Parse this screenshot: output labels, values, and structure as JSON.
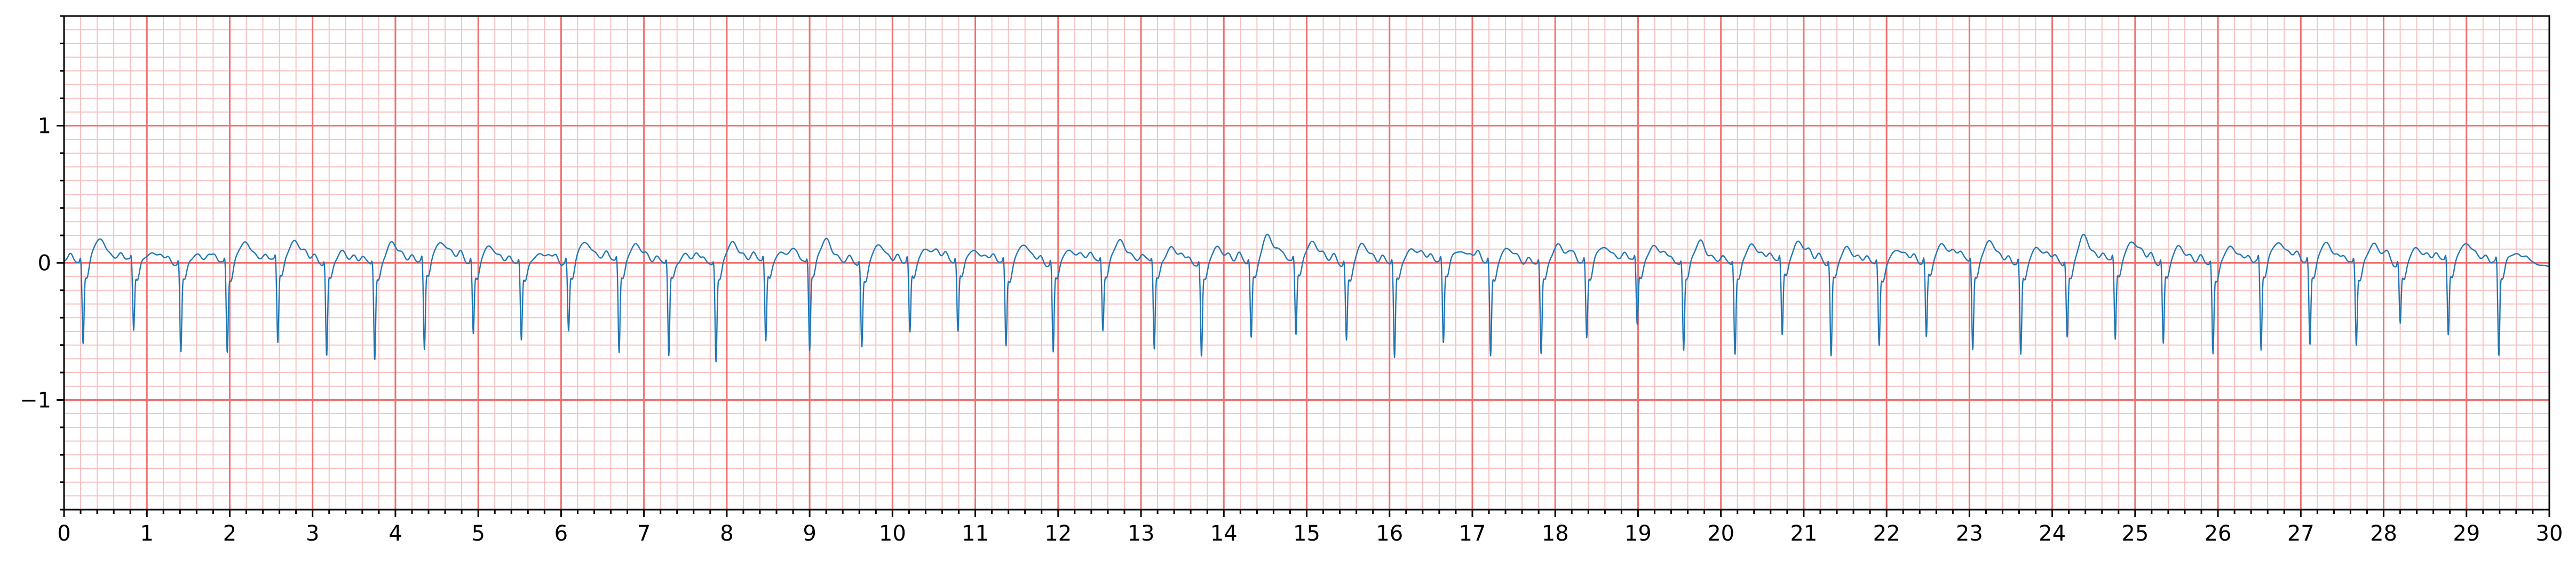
{
  "chart_data": {
    "type": "line",
    "title": "",
    "xlabel": "",
    "ylabel": "",
    "xlim": [
      0,
      30
    ],
    "ylim": [
      -1.8,
      1.8
    ],
    "x_ticks": [
      "0",
      "1",
      "2",
      "3",
      "4",
      "5",
      "6",
      "7",
      "8",
      "9",
      "10",
      "11",
      "12",
      "13",
      "14",
      "15",
      "16",
      "17",
      "18",
      "19",
      "20",
      "21",
      "22",
      "23",
      "24",
      "25",
      "26",
      "27",
      "28",
      "29",
      "30"
    ],
    "y_ticks": [
      {
        "value": -1,
        "label": "−1"
      },
      {
        "value": 0,
        "label": "0"
      },
      {
        "value": 1,
        "label": "1"
      }
    ],
    "grid": {
      "major": true,
      "minor": true,
      "major_step_x": 1,
      "minor_step_x": 0.2,
      "major_step_y": 1,
      "minor_step_y": 0.1
    },
    "colors": {
      "trace": "#1f77b4",
      "major_grid": "#f07070",
      "minor_grid": "#f7c1c1",
      "axis": "#000000"
    },
    "series": [
      {
        "beats_t": [
          0.23,
          0.84,
          1.41,
          1.97,
          2.58,
          3.17,
          3.75,
          4.35,
          4.94,
          5.52,
          6.09,
          6.7,
          7.3,
          7.87,
          8.47,
          9.0,
          9.63,
          10.21,
          10.79,
          11.37,
          11.94,
          12.54,
          13.16,
          13.73,
          14.33,
          14.87,
          15.48,
          16.06,
          16.65,
          17.22,
          17.83,
          18.38,
          18.99,
          19.55,
          20.17,
          20.74,
          21.33,
          21.91,
          22.48,
          23.04,
          23.62,
          24.18,
          24.76,
          25.34,
          25.94,
          26.52,
          27.11,
          27.67,
          28.2,
          28.78,
          29.39
        ],
        "beats_r": [
          -0.57,
          -0.47,
          -0.62,
          -0.62,
          -0.58,
          -0.65,
          -0.67,
          -0.64,
          -0.5,
          -0.53,
          -0.48,
          -0.64,
          -0.65,
          -0.68,
          -0.57,
          -0.61,
          -0.57,
          -0.51,
          -0.49,
          -0.58,
          -0.63,
          -0.47,
          -0.6,
          -0.65,
          -0.53,
          -0.52,
          -0.53,
          -0.67,
          -0.58,
          -0.66,
          -0.64,
          -0.52,
          -0.44,
          -0.6,
          -0.63,
          -0.53,
          -0.66,
          -0.57,
          -0.54,
          -0.61,
          -0.65,
          -0.5,
          -0.56,
          -0.57,
          -0.62,
          -0.63,
          -0.58,
          -0.57,
          -0.41,
          -0.52,
          -0.66
        ],
        "beats_t_wave": [
          0.16,
          0.07,
          0.08,
          0.14,
          0.16,
          0.09,
          0.15,
          0.15,
          0.12,
          0.08,
          0.15,
          0.12,
          0.08,
          0.15,
          0.06,
          0.18,
          0.14,
          0.1,
          0.08,
          0.15,
          0.1,
          0.14,
          0.12,
          0.13,
          0.18,
          0.16,
          0.15,
          0.1,
          0.08,
          0.11,
          0.15,
          0.1,
          0.12,
          0.18,
          0.12,
          0.15,
          0.12,
          0.1,
          0.13,
          0.15,
          0.14,
          0.19,
          0.15,
          0.13,
          0.12,
          0.15,
          0.14,
          0.16,
          0.1,
          0.13,
          0.09
        ]
      }
    ]
  }
}
